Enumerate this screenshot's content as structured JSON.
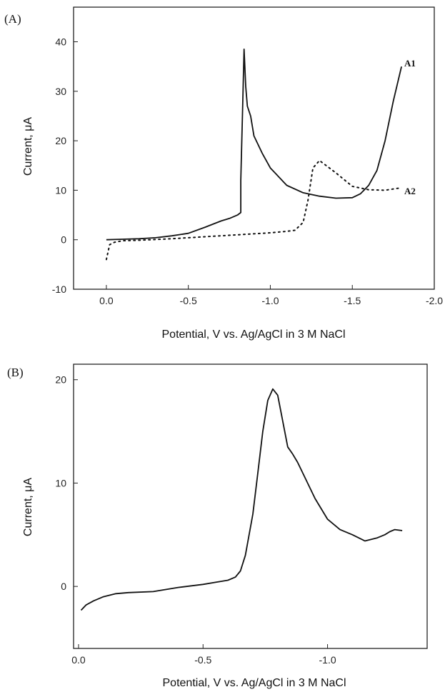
{
  "chart_data": [
    {
      "type": "line",
      "panel_label": "(A)",
      "xlabel": "Potential, V vs. Ag/AgCl in 3 M NaCl",
      "ylabel": "Current, μA",
      "xlim": [
        0.2,
        -2.0
      ],
      "ylim": [
        -10,
        47
      ],
      "xticks": [
        0.0,
        -0.5,
        -1.0,
        -1.5,
        -2.0
      ],
      "xtick_labels": [
        "0.0",
        "-0.5",
        "-1.0",
        "-1.5",
        "-2.0"
      ],
      "yticks": [
        -10,
        0,
        10,
        20,
        30,
        40
      ],
      "ytick_labels": [
        "-10",
        "0",
        "10",
        "20",
        "30",
        "40"
      ],
      "grid": false,
      "series": [
        {
          "name": "A1",
          "style": "solid",
          "x": [
            0.0,
            -0.1,
            -0.2,
            -0.3,
            -0.4,
            -0.5,
            -0.6,
            -0.7,
            -0.75,
            -0.8,
            -0.82,
            -0.82,
            -0.83,
            -0.84,
            -0.85,
            -0.86,
            -0.88,
            -0.9,
            -0.95,
            -1.0,
            -1.1,
            -1.2,
            -1.3,
            -1.4,
            -1.5,
            -1.55,
            -1.6,
            -1.65,
            -1.7,
            -1.75,
            -1.8
          ],
          "y": [
            0,
            0.1,
            0.2,
            0.4,
            0.8,
            1.3,
            2.5,
            3.8,
            4.3,
            5.0,
            5.5,
            12,
            25,
            38.5,
            31,
            27,
            25,
            21,
            17.5,
            14.5,
            11,
            9.5,
            8.8,
            8.4,
            8.5,
            9.3,
            11,
            14,
            20,
            28,
            35
          ]
        },
        {
          "name": "A2",
          "style": "dotted",
          "x": [
            0.0,
            -0.02,
            -0.05,
            -0.1,
            -0.2,
            -0.4,
            -0.6,
            -0.8,
            -1.0,
            -1.1,
            -1.15,
            -1.2,
            -1.23,
            -1.26,
            -1.3,
            -1.4,
            -1.5,
            -1.6,
            -1.7,
            -1.8
          ],
          "y": [
            -4,
            -1,
            -0.5,
            -0.2,
            -0.1,
            0.2,
            0.6,
            1.0,
            1.4,
            1.7,
            1.9,
            3.5,
            8,
            14.5,
            16,
            13.5,
            10.8,
            10.1,
            10.0,
            10.5
          ]
        }
      ]
    },
    {
      "type": "line",
      "panel_label": "(B)",
      "xlabel": "Potential, V vs. Ag/AgCl in 3 M NaCl",
      "ylabel": "Current, μA",
      "xlim": [
        0.02,
        -1.4
      ],
      "ylim": [
        -6,
        21.5
      ],
      "xticks": [
        0.0,
        -0.5,
        -1.0
      ],
      "xtick_labels": [
        "0.0",
        "-0.5",
        "-1.0"
      ],
      "yticks": [
        0,
        10,
        20
      ],
      "ytick_labels": [
        "0",
        "10",
        "20"
      ],
      "grid": false,
      "series": [
        {
          "name": "",
          "style": "solid",
          "x": [
            -0.01,
            -0.03,
            -0.06,
            -0.1,
            -0.15,
            -0.2,
            -0.3,
            -0.4,
            -0.5,
            -0.55,
            -0.6,
            -0.63,
            -0.65,
            -0.67,
            -0.7,
            -0.72,
            -0.74,
            -0.76,
            -0.78,
            -0.8,
            -0.82,
            -0.84,
            -0.86,
            -0.88,
            -0.9,
            -0.95,
            -1.0,
            -1.05,
            -1.1,
            -1.15,
            -1.2,
            -1.23,
            -1.25,
            -1.27,
            -1.3
          ],
          "y": [
            -2.3,
            -1.8,
            -1.4,
            -1.0,
            -0.7,
            -0.6,
            -0.5,
            -0.1,
            0.2,
            0.4,
            0.6,
            0.9,
            1.5,
            3.0,
            7.0,
            11.0,
            15.0,
            18.0,
            19.1,
            18.5,
            16.0,
            13.5,
            12.8,
            12.0,
            11.0,
            8.5,
            6.5,
            5.5,
            5.0,
            4.4,
            4.7,
            5.0,
            5.3,
            5.5,
            5.4
          ]
        }
      ]
    }
  ]
}
